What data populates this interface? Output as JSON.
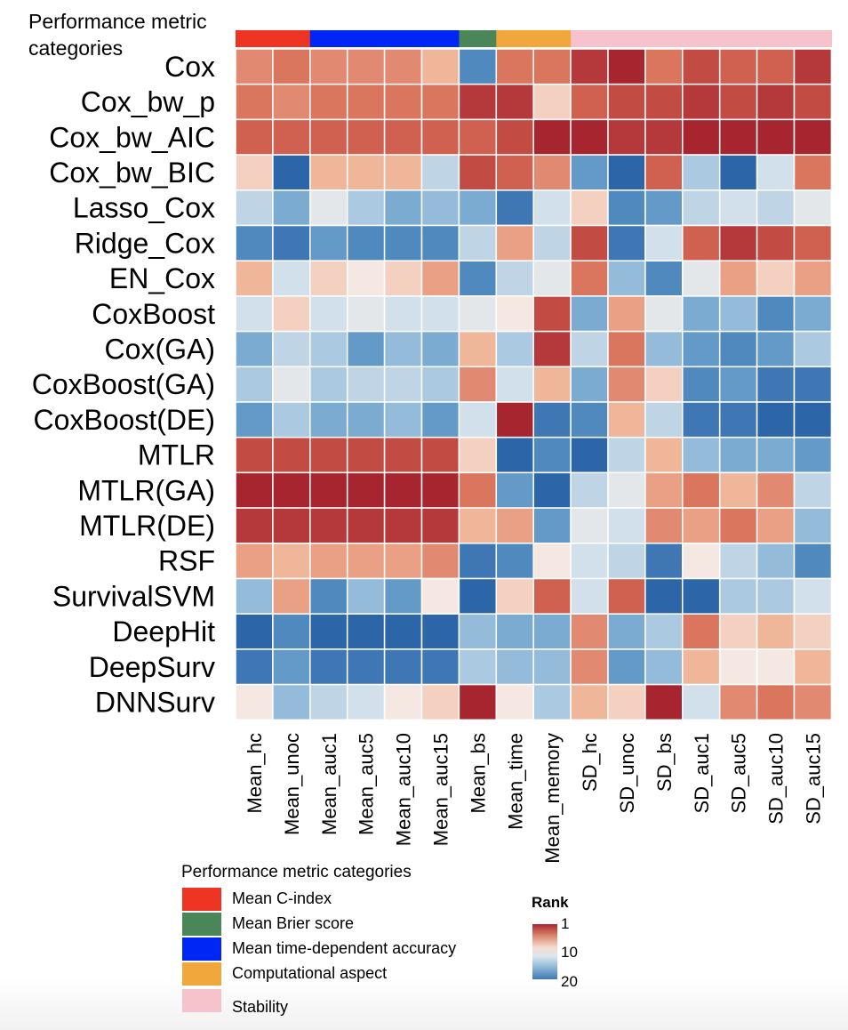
{
  "chart_data": {
    "type": "heatmap",
    "title": "",
    "annotation_title": "Performance metric categories",
    "rows": [
      "Cox",
      "Cox_bw_p",
      "Cox_bw_AIC",
      "Cox_bw_BIC",
      "Lasso_Cox",
      "Ridge_Cox",
      "EN_Cox",
      "CoxBoost",
      "Cox(GA)",
      "CoxBoost(GA)",
      "CoxBoost(DE)",
      "MTLR",
      "MTLR(GA)",
      "MTLR(DE)",
      "RSF",
      "SurvivalSVM",
      "DeepHit",
      "DeepSurv",
      "DNNSurv"
    ],
    "columns": [
      "Mean_hc",
      "Mean_unoc",
      "Mean_auc1",
      "Mean_auc5",
      "Mean_auc10",
      "Mean_auc15",
      "Mean_bs",
      "Mean_time",
      "Mean_memory",
      "SD_hc",
      "SD_unoc",
      "SD_bs",
      "SD_auc1",
      "SD_auc5",
      "SD_auc10",
      "SD_auc15"
    ],
    "column_categories": [
      "Mean C-index",
      "Mean C-index",
      "Mean time-dependent accuracy",
      "Mean time-dependent accuracy",
      "Mean time-dependent accuracy",
      "Mean time-dependent accuracy",
      "Mean Brier score",
      "Computational aspect",
      "Computational aspect",
      "Stability",
      "Stability",
      "Stability",
      "Stability",
      "Stability",
      "Stability",
      "Stability"
    ],
    "categories": [
      {
        "name": "Mean C-index",
        "color": "#ee3524"
      },
      {
        "name": "Mean Brier score",
        "color": "#4b8658"
      },
      {
        "name": "Mean time-dependent accuracy",
        "color": "#0026f5"
      },
      {
        "name": "Computational aspect",
        "color": "#f2a73c"
      },
      {
        "name": "Stability",
        "color": "#f6c3cc"
      }
    ],
    "values": [
      [
        6,
        5,
        6,
        6,
        6,
        8,
        18,
        5,
        5,
        2,
        1,
        5,
        3,
        4,
        4,
        2
      ],
      [
        5,
        6,
        5,
        5,
        5,
        5,
        2,
        2,
        9,
        4,
        3,
        3,
        2,
        3,
        2,
        3
      ],
      [
        4,
        4,
        4,
        4,
        4,
        4,
        4,
        3,
        1,
        1,
        2,
        2,
        1,
        1,
        1,
        1
      ],
      [
        9,
        20,
        8,
        8,
        8,
        13,
        3,
        4,
        6,
        17,
        20,
        4,
        14,
        20,
        12,
        5
      ],
      [
        13,
        16,
        11,
        14,
        16,
        15,
        16,
        19,
        12,
        9,
        18,
        17,
        13,
        12,
        13,
        11
      ],
      [
        18,
        19,
        17,
        18,
        18,
        18,
        13,
        7,
        13,
        3,
        19,
        12,
        4,
        2,
        3,
        4
      ],
      [
        8,
        12,
        9,
        10,
        9,
        7,
        18,
        13,
        11,
        5,
        15,
        18,
        11,
        7,
        9,
        7
      ],
      [
        12,
        9,
        12,
        11,
        12,
        12,
        11,
        10,
        3,
        16,
        7,
        11,
        16,
        15,
        18,
        16
      ],
      [
        16,
        13,
        14,
        17,
        15,
        16,
        8,
        14,
        2,
        13,
        5,
        15,
        17,
        18,
        17,
        14
      ],
      [
        14,
        11,
        14,
        13,
        13,
        14,
        6,
        12,
        8,
        16,
        6,
        9,
        18,
        17,
        19,
        19
      ],
      [
        17,
        14,
        16,
        16,
        15,
        17,
        12,
        1,
        19,
        18,
        8,
        13,
        19,
        19,
        20,
        20
      ],
      [
        3,
        3,
        3,
        3,
        3,
        3,
        9,
        20,
        18,
        20,
        13,
        8,
        15,
        16,
        16,
        17
      ],
      [
        1,
        1,
        1,
        1,
        1,
        1,
        5,
        17,
        20,
        13,
        11,
        7,
        5,
        8,
        6,
        13
      ],
      [
        2,
        2,
        2,
        2,
        2,
        2,
        8,
        7,
        17,
        11,
        12,
        6,
        7,
        5,
        7,
        15
      ],
      [
        7,
        8,
        7,
        7,
        7,
        6,
        19,
        18,
        10,
        12,
        13,
        19,
        10,
        13,
        15,
        18
      ],
      [
        15,
        7,
        18,
        15,
        17,
        10,
        20,
        9,
        4,
        12,
        4,
        20,
        20,
        14,
        14,
        12
      ],
      [
        20,
        18,
        20,
        20,
        20,
        20,
        15,
        16,
        16,
        6,
        16,
        14,
        5,
        9,
        8,
        9
      ],
      [
        19,
        17,
        19,
        19,
        19,
        19,
        14,
        15,
        15,
        6,
        17,
        15,
        8,
        10,
        10,
        8
      ],
      [
        10,
        15,
        13,
        12,
        10,
        9,
        1,
        10,
        14,
        8,
        9,
        1,
        12,
        6,
        5,
        6
      ]
    ],
    "colorbar": {
      "title": "Rank",
      "ticks": [
        "1",
        "10",
        "20"
      ],
      "min": 1,
      "max": 20,
      "low_rank_color": "#a7252f",
      "mid_color": "#f7f7f7",
      "high_rank_color": "#2c65a8"
    },
    "legend": {
      "title": "Performance metric categories",
      "placement": "bottom"
    }
  }
}
